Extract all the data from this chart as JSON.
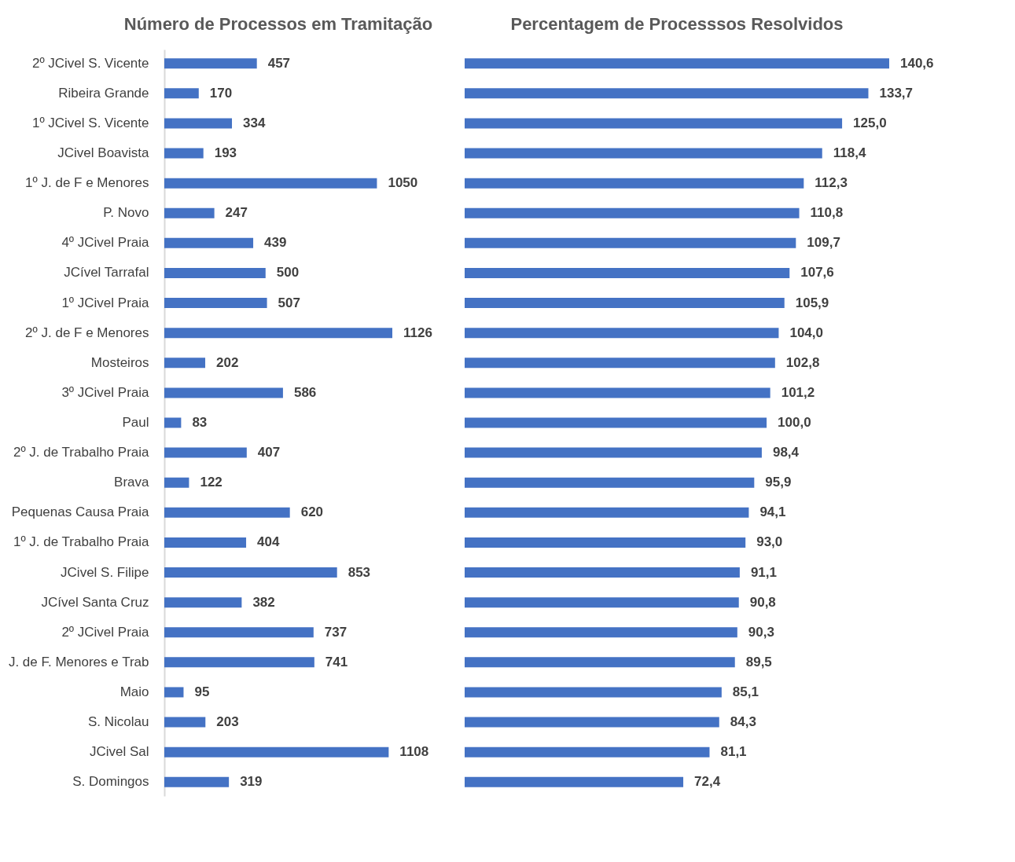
{
  "chart_data": [
    {
      "type": "bar",
      "orientation": "horizontal",
      "title": "Número de Processos em Tramitação",
      "tick_labels": "y",
      "data_labels": true,
      "color": "#4472c4",
      "categories": [
        "2º JCivel S. Vicente",
        "Ribeira Grande",
        "1º JCivel S. Vicente",
        "JCivel Boavista",
        "1º J. de F e Menores",
        "P. Novo",
        "4º JCivel Praia",
        "JCível Tarrafal",
        "1º JCivel Praia",
        "2º J. de F e Menores",
        "Mosteiros",
        "3º JCivel Praia",
        "Paul",
        "2º J. de Trabalho Praia",
        "Brava",
        "Pequenas Causa Praia",
        "1º J. de Trabalho Praia",
        "JCivel S. Filipe",
        "JCível Santa Cruz",
        "2º JCivel Praia",
        "J. de F. Menores e Trab",
        "Maio",
        "S. Nicolau",
        "JCivel Sal",
        "S. Domingos"
      ],
      "values": [
        457,
        170,
        334,
        193,
        1050,
        247,
        439,
        500,
        507,
        1126,
        202,
        586,
        83,
        407,
        122,
        620,
        404,
        853,
        382,
        737,
        741,
        95,
        203,
        1108,
        319
      ]
    },
    {
      "type": "bar",
      "orientation": "horizontal",
      "title": "Percentagem de Processsos Resolvidos",
      "tick_labels": false,
      "color": "#4472c4",
      "categories": [
        null,
        null,
        null,
        null,
        null,
        null,
        null,
        null,
        null,
        null,
        null,
        null,
        null,
        null,
        null,
        null,
        null,
        null,
        null,
        null,
        null,
        null,
        null,
        null,
        null
      ],
      "values": [
        140.6,
        133.7,
        125.0,
        118.4,
        112.3,
        110.8,
        109.7,
        107.6,
        105.9,
        104.0,
        102.8,
        101.2,
        100.0,
        98.4,
        95.9,
        94.1,
        93.0,
        91.1,
        90.8,
        90.3,
        89.5,
        85.1,
        84.3,
        81.1,
        72.4
      ],
      "value_labels": [
        "140,6",
        "133,7",
        "125,0",
        "118,4",
        "112,3",
        "110,8",
        "109,7",
        "107,6",
        "105,9",
        "104,0",
        "102,8",
        "101,2",
        "100,0",
        "98,4",
        "95,9",
        "94,1",
        "93,0",
        "91,1",
        "90,8",
        "90,3",
        "89,5",
        "85,1",
        "84,3",
        "81,1",
        "72,4"
      ]
    }
  ]
}
